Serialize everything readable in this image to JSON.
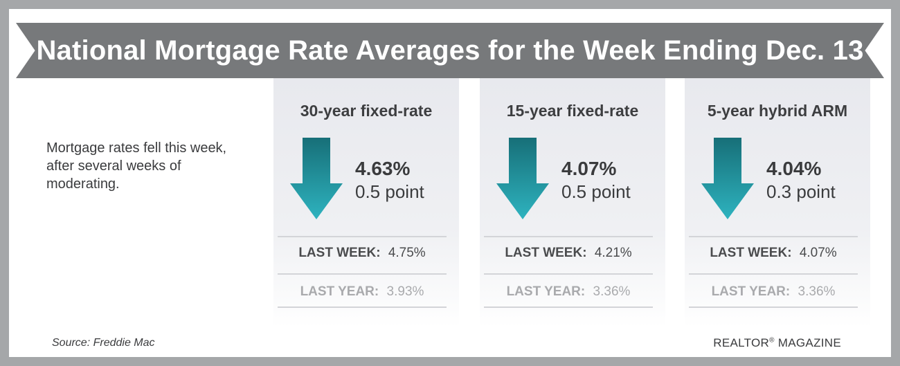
{
  "title": "National Mortgage Rate Averages for the Week Ending Dec. 13",
  "summary": "Mortgage rates fell this week, after several weeks of moderating.",
  "columns": [
    {
      "name": "30-year fixed-rate",
      "rate": "4.63%",
      "change": "0.5 point",
      "last_week_label": "LAST WEEK:",
      "last_week": "4.75%",
      "last_year_label": "LAST YEAR:",
      "last_year": "3.93%"
    },
    {
      "name": "15-year fixed-rate",
      "rate": "4.07%",
      "change": "0.5 point",
      "last_week_label": "LAST WEEK:",
      "last_week": "4.21%",
      "last_year_label": "LAST YEAR:",
      "last_year": "3.36%"
    },
    {
      "name": "5-year hybrid ARM",
      "rate": "4.04%",
      "change": "0.3 point",
      "last_week_label": "LAST WEEK:",
      "last_week": "4.07%",
      "last_year_label": "LAST YEAR:",
      "last_year": "3.36%"
    }
  ],
  "source": "Source: Freddie Mac",
  "brand": "REALTOR",
  "brand_mark": "®",
  "brand_suffix": " MAGAZINE",
  "icons": {
    "down_arrow": "down-arrow-icon"
  },
  "colors": {
    "frame": "#a5a7a9",
    "banner": "#77797b",
    "arrow_top": "#176f78",
    "arrow_bottom": "#2eb3bf",
    "panel": "#e8e9ee"
  }
}
